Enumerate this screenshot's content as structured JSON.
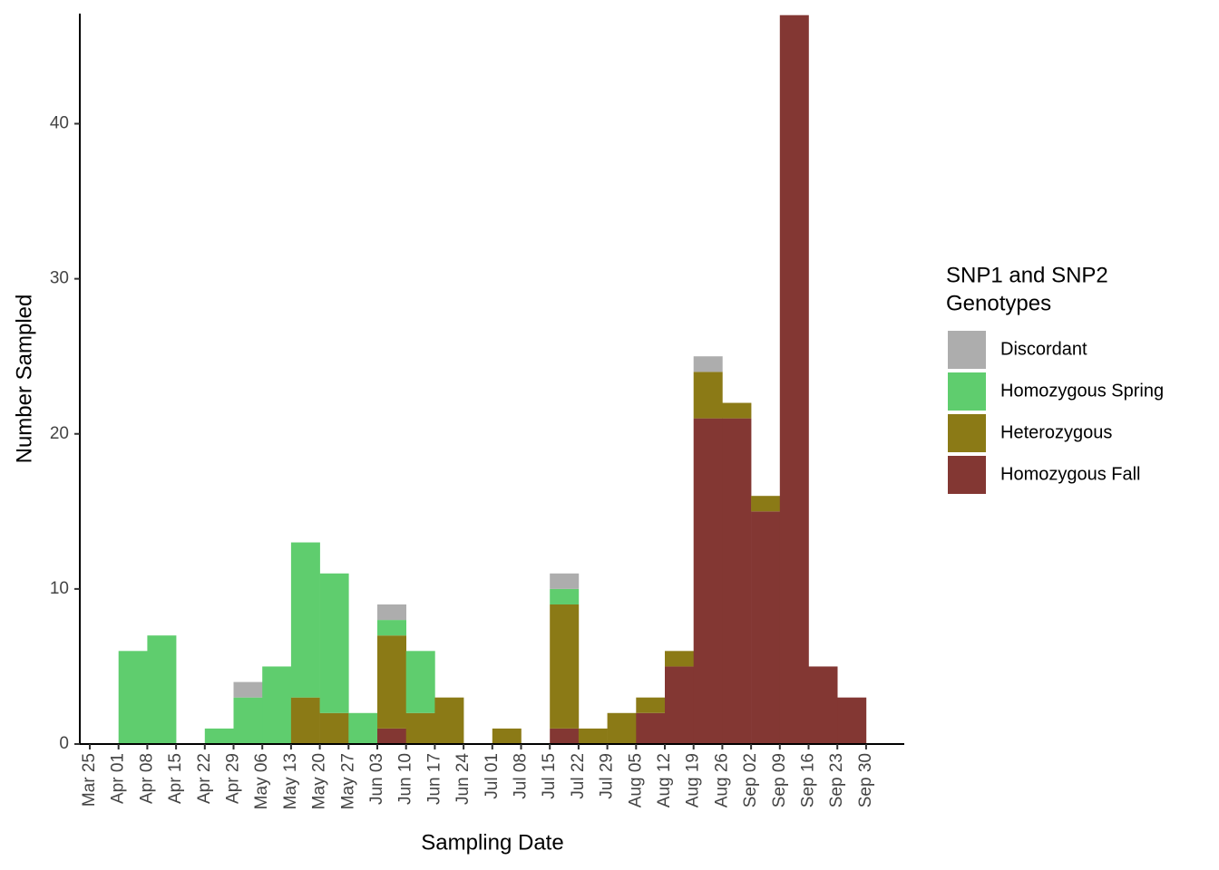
{
  "chart_data": {
    "type": "histogram",
    "xlabel": "Sampling Date",
    "ylabel": "Number Sampled",
    "legend_title": [
      "SNP1 and SNP2",
      "Genotypes"
    ],
    "bins": [
      "Mar 25",
      "Apr 01",
      "Apr 08",
      "Apr 15",
      "Apr 22",
      "Apr 29",
      "May 06",
      "May 13",
      "May 20",
      "May 27",
      "Jun 03",
      "Jun 10",
      "Jun 17",
      "Jun 24",
      "Jul 01",
      "Jul 08",
      "Jul 15",
      "Jul 22",
      "Jul 29",
      "Aug 05",
      "Aug 12",
      "Aug 19",
      "Aug 26",
      "Sep 02",
      "Sep 09",
      "Sep 16",
      "Sep 23",
      "Sep 30"
    ],
    "series": [
      {
        "name": "Discordant",
        "color": "#adadad",
        "values": [
          0,
          0,
          0,
          0,
          0,
          1,
          0,
          0,
          0,
          0,
          1,
          0,
          0,
          0,
          0,
          0,
          1,
          0,
          0,
          0,
          0,
          1,
          0,
          0,
          0,
          0,
          0
        ]
      },
      {
        "name": "Homozygous Spring",
        "color": "#5fcd6e",
        "values": [
          0,
          6,
          7,
          0,
          1,
          3,
          5,
          10,
          9,
          2,
          1,
          4,
          0,
          0,
          0,
          0,
          1,
          0,
          0,
          0,
          0,
          0,
          0,
          0,
          0,
          0,
          0
        ]
      },
      {
        "name": "Heterozygous",
        "color": "#8b7a16",
        "values": [
          0,
          0,
          0,
          0,
          0,
          0,
          0,
          3,
          2,
          0,
          6,
          2,
          3,
          0,
          1,
          0,
          8,
          1,
          2,
          1,
          1,
          3,
          1,
          1,
          0,
          0,
          0
        ]
      },
      {
        "name": "Homozygous Fall",
        "color": "#833733",
        "values": [
          0,
          0,
          0,
          0,
          0,
          0,
          0,
          0,
          0,
          0,
          1,
          0,
          0,
          0,
          0,
          0,
          1,
          0,
          0,
          2,
          5,
          21,
          21,
          15,
          47,
          5,
          3
        ]
      }
    ],
    "ylim": [
      0,
      47.1
    ],
    "yticks": [
      0,
      10,
      20,
      30,
      40
    ],
    "grid": false
  }
}
